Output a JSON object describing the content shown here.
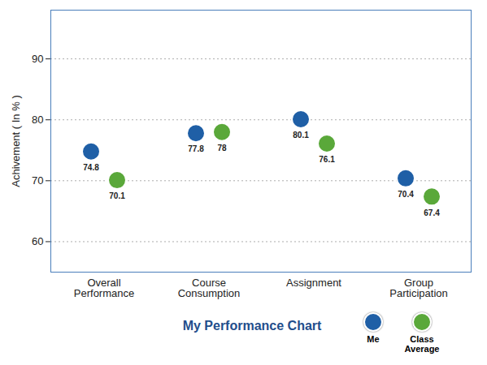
{
  "chart_data": {
    "type": "scatter",
    "title": "My Performance Chart",
    "y_label": "Achivement ( In % )",
    "categories": [
      "Overall Performance",
      "Course Consumption",
      "Assignment",
      "Group Participation"
    ],
    "series": [
      {
        "name": "Me",
        "color": "#1f5fa6",
        "values": [
          74.8,
          77.8,
          80.1,
          70.4
        ]
      },
      {
        "name": "Class Average",
        "color": "#5aa83a",
        "values": [
          70.1,
          78,
          76.1,
          67.4
        ]
      }
    ],
    "ylim": [
      55,
      98
    ],
    "yticks": [
      60,
      70,
      80,
      90
    ],
    "grid": true,
    "data_labels": true,
    "legend": "bottom-right",
    "marker": "circle"
  }
}
